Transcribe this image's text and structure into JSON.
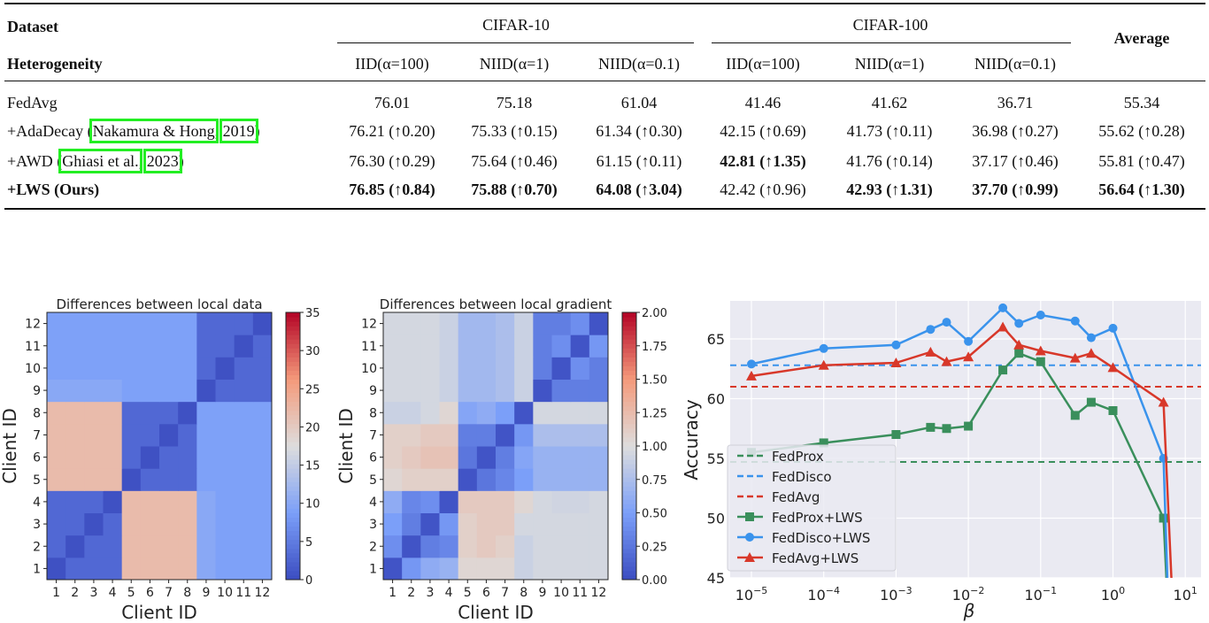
{
  "table": {
    "header": {
      "dataset_label": "Dataset",
      "heterogeneity_label": "Heterogeneity",
      "groups": [
        "CIFAR-10",
        "CIFAR-100"
      ],
      "average_label": "Average",
      "columns": [
        "IID(α=100)",
        "NIID(α=1)",
        "NIID(α=0.1)",
        "IID(α=100)",
        "NIID(α=1)",
        "NIID(α=0.1)"
      ]
    },
    "rows": [
      {
        "method": {
          "prefix": "FedAvg",
          "author": "",
          "sep": "",
          "year": "",
          "suffix": ""
        },
        "bold_method": false,
        "cells": [
          {
            "t": "76.01",
            "b": false
          },
          {
            "t": "75.18",
            "b": false
          },
          {
            "t": "61.04",
            "b": false
          },
          {
            "t": "41.46",
            "b": false
          },
          {
            "t": "41.62",
            "b": false
          },
          {
            "t": "36.71",
            "b": false
          },
          {
            "t": "55.34",
            "b": false
          }
        ]
      },
      {
        "method": {
          "prefix": "+AdaDecay (",
          "author": "Nakamura & Hong",
          "sep": ", ",
          "year": "2019",
          "suffix": ")"
        },
        "bold_method": false,
        "cells": [
          {
            "t": "76.21 (↑0.20)",
            "b": false
          },
          {
            "t": "75.33 (↑0.15)",
            "b": false
          },
          {
            "t": "61.34 (↑0.30)",
            "b": false
          },
          {
            "t": "42.15 (↑0.69)",
            "b": false
          },
          {
            "t": "41.73 (↑0.11)",
            "b": false
          },
          {
            "t": "36.98 (↑0.27)",
            "b": false
          },
          {
            "t": "55.62 (↑0.28)",
            "b": false
          }
        ]
      },
      {
        "method": {
          "prefix": "+AWD (",
          "author": "Ghiasi et al.",
          "sep": ", ",
          "year": "2023",
          "suffix": ")"
        },
        "bold_method": false,
        "cells": [
          {
            "t": "76.30 (↑0.29)",
            "b": false
          },
          {
            "t": "75.64 (↑0.46)",
            "b": false
          },
          {
            "t": "61.15 (↑0.11)",
            "b": false
          },
          {
            "t": "42.81 (↑1.35)",
            "b": true
          },
          {
            "t": "41.76 (↑0.14)",
            "b": false
          },
          {
            "t": "37.17 (↑0.46)",
            "b": false
          },
          {
            "t": "55.81 (↑0.47)",
            "b": false
          }
        ]
      },
      {
        "method": {
          "prefix": "+LWS (Ours)",
          "author": "",
          "sep": "",
          "year": "",
          "suffix": ""
        },
        "bold_method": true,
        "cells": [
          {
            "t": "76.85 (↑0.84)",
            "b": true
          },
          {
            "t": "75.88 (↑0.70)",
            "b": true
          },
          {
            "t": "64.08 (↑3.04)",
            "b": true
          },
          {
            "t": "42.42 (↑0.96)",
            "b": false
          },
          {
            "t": "42.93 (↑1.31)",
            "b": true
          },
          {
            "t": "37.70 (↑0.99)",
            "b": true
          },
          {
            "t": "56.64 (↑1.30)",
            "b": true
          }
        ]
      }
    ],
    "highlight_color": "#22ee22"
  },
  "chart_data": [
    {
      "type": "heatmap",
      "title": "Differences between local data",
      "xlabel": "Client ID",
      "ylabel": "Client ID",
      "x_ticks": [
        "1",
        "2",
        "3",
        "4",
        "5",
        "6",
        "7",
        "8",
        "9",
        "10",
        "11",
        "12"
      ],
      "y_ticks": [
        "1",
        "2",
        "3",
        "4",
        "5",
        "6",
        "7",
        "8",
        "9",
        "10",
        "11",
        "12"
      ],
      "colormap": "coolwarm",
      "colorbar_range": [
        0,
        35
      ],
      "colorbar_ticks": [
        "0",
        "5",
        "10",
        "15",
        "20",
        "25",
        "30",
        "35"
      ],
      "values": [
        [
          0.5,
          3,
          3,
          3,
          22,
          22,
          22,
          22,
          10,
          9,
          9,
          9
        ],
        [
          3,
          0.5,
          3,
          3,
          22,
          22,
          22,
          22,
          10,
          9,
          9,
          9
        ],
        [
          3,
          3,
          0.5,
          3,
          22,
          22,
          22,
          22,
          10,
          9,
          9,
          9
        ],
        [
          3,
          3,
          3,
          0.5,
          22,
          22,
          22,
          22,
          10,
          9,
          9,
          9
        ],
        [
          22,
          22,
          22,
          22,
          0.5,
          3,
          3,
          3,
          9,
          9,
          9,
          9
        ],
        [
          22,
          22,
          22,
          22,
          3,
          0.5,
          3,
          3,
          9,
          9,
          9,
          9
        ],
        [
          22,
          22,
          22,
          22,
          3,
          3,
          0.5,
          3,
          9,
          9,
          9,
          9
        ],
        [
          22,
          22,
          22,
          22,
          3,
          3,
          3,
          0.5,
          9,
          9,
          9,
          9
        ],
        [
          10,
          10,
          10,
          10,
          9,
          9,
          9,
          9,
          0.5,
          3,
          3,
          3
        ],
        [
          9,
          9,
          9,
          9,
          9,
          9,
          9,
          9,
          3,
          0.5,
          3,
          3
        ],
        [
          9,
          9,
          9,
          9,
          9,
          9,
          9,
          9,
          3,
          3,
          0.5,
          3
        ],
        [
          9,
          9,
          9,
          9,
          9,
          9,
          9,
          9,
          3,
          3,
          3,
          0.5
        ]
      ]
    },
    {
      "type": "heatmap",
      "title": "Differences between local gradient",
      "xlabel": "Client ID",
      "ylabel": "Client ID",
      "x_ticks": [
        "1",
        "2",
        "3",
        "4",
        "5",
        "6",
        "7",
        "8",
        "9",
        "10",
        "11",
        "12"
      ],
      "y_ticks": [
        "1",
        "2",
        "3",
        "4",
        "5",
        "6",
        "7",
        "8",
        "9",
        "10",
        "11",
        "12"
      ],
      "colormap": "coolwarm",
      "colorbar_range": [
        0,
        2
      ],
      "colorbar_ticks": [
        "0.00",
        "0.25",
        "0.50",
        "0.75",
        "1.00",
        "1.25",
        "1.50",
        "1.75",
        "2.00"
      ],
      "values": [
        [
          0.05,
          0.45,
          0.6,
          0.65,
          1.05,
          1.05,
          1.05,
          0.9,
          0.95,
          0.95,
          0.95,
          0.95
        ],
        [
          0.4,
          0.05,
          0.3,
          0.35,
          1.1,
          1.15,
          1.1,
          0.9,
          0.95,
          0.95,
          0.95,
          0.95
        ],
        [
          0.5,
          0.3,
          0.05,
          0.45,
          1.1,
          1.15,
          1.15,
          0.95,
          0.95,
          0.95,
          0.95,
          0.95
        ],
        [
          0.6,
          0.35,
          0.4,
          0.05,
          1.15,
          1.15,
          1.15,
          1.05,
          0.95,
          0.93,
          0.93,
          0.95
        ],
        [
          1.05,
          1.1,
          1.1,
          1.1,
          0.05,
          0.25,
          0.35,
          0.5,
          0.65,
          0.65,
          0.65,
          0.65
        ],
        [
          1.1,
          1.15,
          1.2,
          1.2,
          0.25,
          0.05,
          0.3,
          0.55,
          0.65,
          0.65,
          0.65,
          0.65
        ],
        [
          1.1,
          1.1,
          1.15,
          1.15,
          0.3,
          0.3,
          0.05,
          0.45,
          0.75,
          0.75,
          0.75,
          0.75
        ],
        [
          0.9,
          0.9,
          0.95,
          1.05,
          0.55,
          0.6,
          0.5,
          0.05,
          0.95,
          0.95,
          0.95,
          0.95
        ],
        [
          0.95,
          0.95,
          0.95,
          0.9,
          0.7,
          0.7,
          0.75,
          0.9,
          0.05,
          0.3,
          0.3,
          0.3
        ],
        [
          0.95,
          0.95,
          0.95,
          0.9,
          0.7,
          0.7,
          0.75,
          0.9,
          0.3,
          0.05,
          0.4,
          0.3
        ],
        [
          0.95,
          0.95,
          0.95,
          0.9,
          0.7,
          0.7,
          0.75,
          0.9,
          0.3,
          0.4,
          0.05,
          0.45
        ],
        [
          0.95,
          0.95,
          0.95,
          0.9,
          0.7,
          0.7,
          0.75,
          0.9,
          0.3,
          0.3,
          0.4,
          0.05
        ]
      ]
    },
    {
      "type": "line",
      "xlabel": "β",
      "ylabel": "Accuracy",
      "x_scale": "log",
      "xlim": [
        5.5e-06,
        18
      ],
      "ylim": [
        45,
        68.2
      ],
      "x_ticks": [
        {
          "base": "10",
          "exp": "−5"
        },
        {
          "base": "10",
          "exp": "−4"
        },
        {
          "base": "10",
          "exp": "−3"
        },
        {
          "base": "10",
          "exp": "−2"
        },
        {
          "base": "10",
          "exp": "−1"
        },
        {
          "base": "10",
          "exp": "0"
        },
        {
          "base": "10",
          "exp": "1"
        }
      ],
      "y_ticks": [
        45,
        50,
        55,
        60,
        65
      ],
      "grid": true,
      "background": "#eaeaf2",
      "legend_position": "lower-left",
      "hlines": [
        {
          "name": "FedProx",
          "value": 54.7,
          "color": "#3a8f5c"
        },
        {
          "name": "FedDisco",
          "value": 62.8,
          "color": "#3a93ec"
        },
        {
          "name": "FedAvg",
          "value": 61.0,
          "color": "#d8382a"
        }
      ],
      "series": [
        {
          "name": "FedProx+LWS",
          "color": "#3a8f5c",
          "marker": "square",
          "x": [
            1e-05,
            0.0001,
            0.001,
            0.003,
            0.005,
            0.01,
            0.03,
            0.05,
            0.1,
            0.3,
            0.5,
            1,
            5,
            6
          ],
          "y": [
            55.5,
            56.3,
            57.0,
            57.6,
            57.5,
            57.7,
            62.4,
            63.8,
            63.1,
            58.6,
            59.7,
            59.0,
            50.0,
            40
          ]
        },
        {
          "name": "FedDisco+LWS",
          "color": "#3a93ec",
          "marker": "circle",
          "x": [
            1e-05,
            0.0001,
            0.001,
            0.003,
            0.005,
            0.01,
            0.03,
            0.05,
            0.1,
            0.3,
            0.5,
            1,
            5,
            6
          ],
          "y": [
            62.9,
            64.2,
            64.5,
            65.8,
            66.4,
            64.8,
            67.6,
            66.3,
            67.0,
            66.5,
            65.1,
            65.9,
            55.0,
            40
          ]
        },
        {
          "name": "FedAvg+LWS",
          "color": "#d8382a",
          "marker": "triangle",
          "x": [
            1e-05,
            0.0001,
            0.001,
            0.003,
            0.005,
            0.01,
            0.03,
            0.05,
            0.1,
            0.3,
            0.5,
            1,
            5,
            7
          ],
          "y": [
            61.9,
            62.8,
            63.0,
            63.9,
            63.1,
            63.5,
            66.0,
            64.5,
            64.0,
            63.4,
            63.8,
            62.6,
            59.7,
            40
          ]
        }
      ]
    }
  ]
}
